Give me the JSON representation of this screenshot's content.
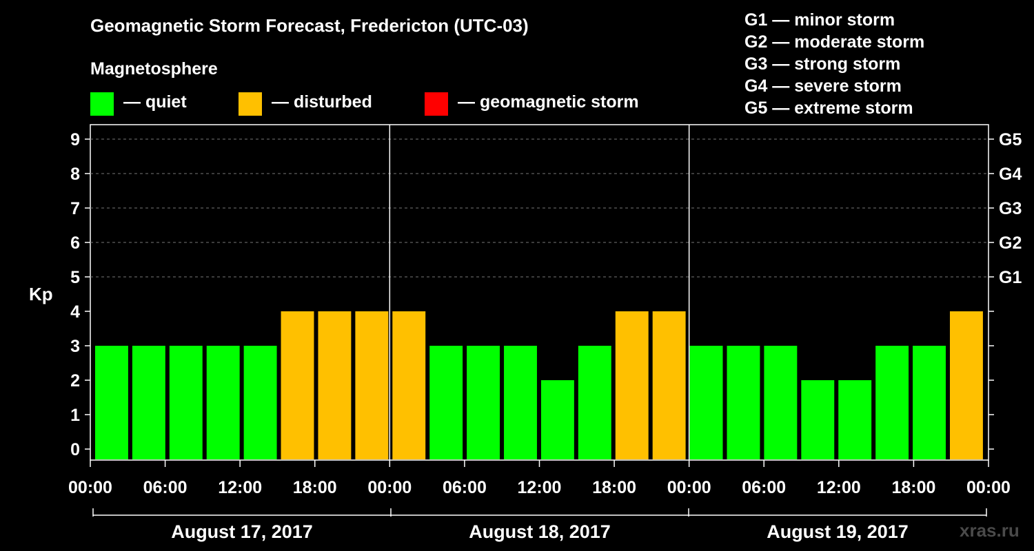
{
  "header": {
    "title": "Geomagnetic Storm Forecast, Fredericton (UTC-03)",
    "magnetosphere_label": "Magnetosphere"
  },
  "legend": [
    {
      "label": "— quiet",
      "color": "#00ff00"
    },
    {
      "label": "— disturbed",
      "color": "#ffc000"
    },
    {
      "label": "— geomagnetic storm",
      "color": "#ff0000"
    }
  ],
  "storm_levels": [
    "G1 — minor storm",
    "G2 — moderate storm",
    "G3 — strong storm",
    "G4 — severe storm",
    "G5 — extreme storm"
  ],
  "watermark": "xras.ru",
  "chart_data": {
    "type": "bar",
    "ylabel": "Kp",
    "ylim": [
      0,
      9
    ],
    "yticks": [
      0,
      1,
      2,
      3,
      4,
      5,
      6,
      7,
      8,
      9
    ],
    "right_axis_ticks": [
      {
        "kp": 5,
        "label": "G1"
      },
      {
        "kp": 6,
        "label": "G2"
      },
      {
        "kp": 7,
        "label": "G3"
      },
      {
        "kp": 8,
        "label": "G4"
      },
      {
        "kp": 9,
        "label": "G5"
      }
    ],
    "x_tick_labels": [
      "00:00",
      "06:00",
      "12:00",
      "18:00",
      "00:00",
      "06:00",
      "12:00",
      "18:00",
      "00:00",
      "06:00",
      "12:00",
      "18:00",
      "00:00"
    ],
    "days": [
      "August 17, 2017",
      "August 18, 2017",
      "August 19, 2017"
    ],
    "bars_per_day": 8,
    "values": [
      3,
      3,
      3,
      3,
      3,
      4,
      4,
      4,
      4,
      3,
      3,
      3,
      2,
      3,
      4,
      4,
      3,
      3,
      3,
      2,
      2,
      3,
      3,
      4
    ],
    "thresholds": {
      "disturbed_from": 4,
      "storm_from": 5
    },
    "grid": "dashed horizontal lines at Kp 5–9"
  }
}
